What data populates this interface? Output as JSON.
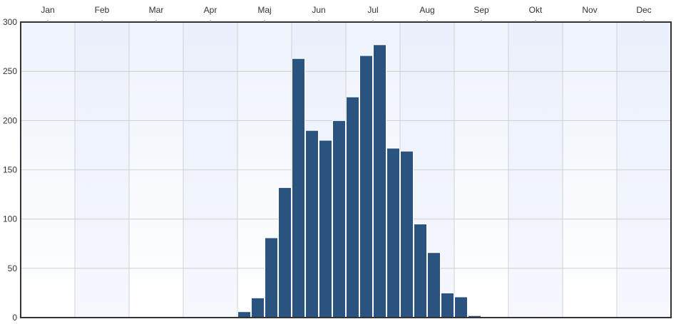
{
  "colors": {
    "bar_fill": "#2b5380",
    "bar_stroke": "#ffffff",
    "plot_bg_top": "#eef3fc",
    "plot_bg_bottom": "#ffffff",
    "grid": "#c8c8c8",
    "frame": "#333333"
  },
  "chart_data": {
    "type": "bar",
    "title": "",
    "xlabel": "",
    "ylabel": "",
    "grid": true,
    "legend": "none",
    "month_labels": [
      "Jan",
      "Feb",
      "Mar",
      "Apr",
      "Maj",
      "Jun",
      "Jul",
      "Aug",
      "Sep",
      "Okt",
      "Nov",
      "Dec"
    ],
    "ylim": [
      0,
      300
    ],
    "yticks": [
      0,
      50,
      100,
      150,
      200,
      250,
      300
    ],
    "bins_per_month": 4,
    "series": [
      {
        "values": [
          0,
          0,
          0,
          0,
          0,
          0,
          0,
          0,
          0,
          0,
          0,
          0,
          0,
          0,
          0,
          0,
          6,
          20,
          81,
          132,
          263,
          190,
          180,
          200,
          224,
          266,
          277,
          172,
          169,
          95,
          66,
          25,
          21,
          2,
          1,
          0,
          0,
          0,
          1,
          0,
          0,
          0,
          0,
          0,
          0,
          0,
          0,
          0
        ]
      }
    ]
  }
}
